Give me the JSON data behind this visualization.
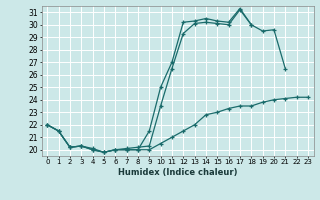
{
  "xlabel": "Humidex (Indice chaleur)",
  "xlim": [
    -0.5,
    23.5
  ],
  "ylim": [
    19.5,
    31.5
  ],
  "yticks": [
    20,
    21,
    22,
    23,
    24,
    25,
    26,
    27,
    28,
    29,
    30,
    31
  ],
  "xticks": [
    0,
    1,
    2,
    3,
    4,
    5,
    6,
    7,
    8,
    9,
    10,
    11,
    12,
    13,
    14,
    15,
    16,
    17,
    18,
    19,
    20,
    21,
    22,
    23
  ],
  "background_color": "#cce8e8",
  "grid_color": "#ffffff",
  "line_color": "#1a6b6b",
  "line1_x": [
    0,
    1,
    2,
    3,
    4,
    5,
    6,
    7,
    8,
    9,
    10,
    11,
    12,
    13,
    14,
    15,
    16,
    17,
    18,
    19,
    20,
    21
  ],
  "line1_y": [
    22,
    21.5,
    20.2,
    20.3,
    20.0,
    19.8,
    20.0,
    20.1,
    20.2,
    20.3,
    23.5,
    26.5,
    29.3,
    30.1,
    30.2,
    30.1,
    30.0,
    31.2,
    30.0,
    29.5,
    29.6,
    26.5
  ],
  "line2_x": [
    0,
    1,
    2,
    3,
    4,
    5,
    6,
    7,
    8,
    9,
    10,
    11,
    12,
    13,
    14,
    15,
    16,
    17,
    18
  ],
  "line2_y": [
    22,
    21.5,
    20.2,
    20.3,
    20.0,
    19.8,
    20.0,
    20.0,
    20.0,
    21.5,
    25.0,
    27.0,
    30.2,
    30.3,
    30.5,
    30.3,
    30.2,
    31.3,
    30.0
  ],
  "line3_x": [
    0,
    1,
    2,
    3,
    4,
    5,
    6,
    7,
    8,
    9,
    10,
    11,
    12,
    13,
    14,
    15,
    16,
    17,
    18,
    19,
    20,
    21,
    22,
    23
  ],
  "line3_y": [
    22,
    21.5,
    20.2,
    20.3,
    20.1,
    19.8,
    20.0,
    20.0,
    20.0,
    20.0,
    20.5,
    21.0,
    21.5,
    22.0,
    22.8,
    23.0,
    23.3,
    23.5,
    23.5,
    23.8,
    24.0,
    24.1,
    24.2,
    24.2
  ]
}
